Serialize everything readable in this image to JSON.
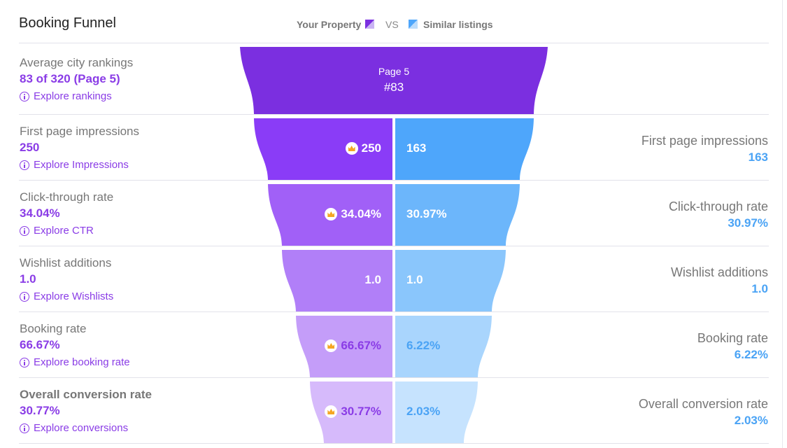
{
  "title": "Booking Funnel",
  "legend": {
    "your_property": "Your Property",
    "vs": "VS",
    "similar": "Similar listings",
    "your_color": "#7b2fe0",
    "similar_color": "#4ea6fb"
  },
  "top": {
    "label": "Average city rankings",
    "value": "83 of 320 (Page 5)",
    "explore": "Explore rankings",
    "funnel_page": "Page 5",
    "funnel_rank": "#83"
  },
  "rows": [
    {
      "label": "First page impressions",
      "value": "250",
      "explore": "Explore Impressions",
      "your_display": "250",
      "similar_display": "163",
      "right_label": "First page impressions",
      "right_value": "163",
      "crown": true
    },
    {
      "label": "Click-through rate",
      "value": "34.04%",
      "explore": "Explore CTR",
      "your_display": "34.04%",
      "similar_display": "30.97%",
      "right_label": "Click-through rate",
      "right_value": "30.97%",
      "crown": true
    },
    {
      "label": "Wishlist additions",
      "value": "1.0",
      "explore": "Explore Wishlists",
      "your_display": "1.0",
      "similar_display": "1.0",
      "right_label": "Wishlist additions",
      "right_value": "1.0",
      "crown": false
    },
    {
      "label": "Booking rate",
      "value": "66.67%",
      "explore": "Explore booking rate",
      "your_display": "66.67%",
      "similar_display": "6.22%",
      "right_label": "Booking rate",
      "right_value": "6.22%",
      "crown": true
    },
    {
      "label": "Overall conversion rate",
      "value": "30.77%",
      "explore": "Explore conversions",
      "your_display": "30.77%",
      "similar_display": "2.03%",
      "right_label": "Overall conversion rate",
      "right_value": "2.03%",
      "crown": true
    }
  ],
  "colors": {
    "top": "#7b2fe0",
    "left": [
      "#8a3cf7",
      "#a160f7",
      "#b17ff8",
      "#c49df9",
      "#d6bafb"
    ],
    "right": [
      "#4ea6fb",
      "#6cb6fb",
      "#8ac6fc",
      "#a9d5fd",
      "#c6e3fe"
    ],
    "left_text": [
      "#ffffff",
      "#ffffff",
      "#ffffff",
      "#8a3ce6",
      "#8a3ce6"
    ],
    "right_text": [
      "#ffffff",
      "#ffffff",
      "#ffffff",
      "#4aa3f5",
      "#4aa3f5"
    ]
  }
}
